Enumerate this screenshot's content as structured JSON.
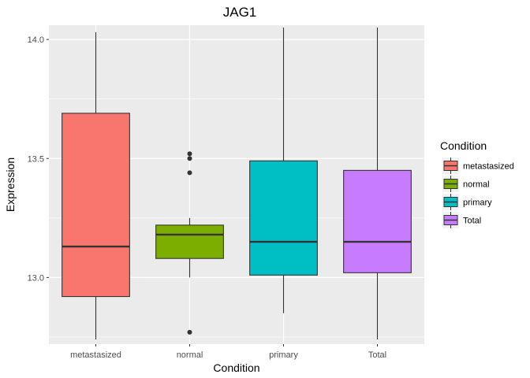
{
  "chart_data": {
    "type": "boxplot",
    "title": "JAG1",
    "xlabel": "Condition",
    "ylabel": "Expression",
    "ylim": [
      12.72,
      14.06
    ],
    "yticks": [
      13.0,
      13.5,
      14.0
    ],
    "ytick_labels": [
      "13.0",
      "13.5",
      "14.0"
    ],
    "grid": true,
    "legend": {
      "title": "Condition",
      "position": "right"
    },
    "categories": [
      "metastasized",
      "normal",
      "primary",
      "Total"
    ],
    "series": [
      {
        "name": "metastasized",
        "color": "#F8766D",
        "whisker_low": 12.74,
        "q1": 12.92,
        "median": 13.13,
        "q3": 13.69,
        "whisker_high": 14.03,
        "outliers": []
      },
      {
        "name": "normal",
        "color": "#7CAE00",
        "whisker_low": 13.0,
        "q1": 13.08,
        "median": 13.18,
        "q3": 13.22,
        "whisker_high": 13.25,
        "outliers": [
          12.77,
          13.44,
          13.5,
          13.52
        ]
      },
      {
        "name": "primary",
        "color": "#00BFC4",
        "whisker_low": 12.85,
        "q1": 13.01,
        "median": 13.15,
        "q3": 13.49,
        "whisker_high": 14.05,
        "outliers": []
      },
      {
        "name": "Total",
        "color": "#C77CFF",
        "whisker_low": 12.74,
        "q1": 13.02,
        "median": 13.15,
        "q3": 13.45,
        "whisker_high": 14.05,
        "outliers": []
      }
    ]
  }
}
